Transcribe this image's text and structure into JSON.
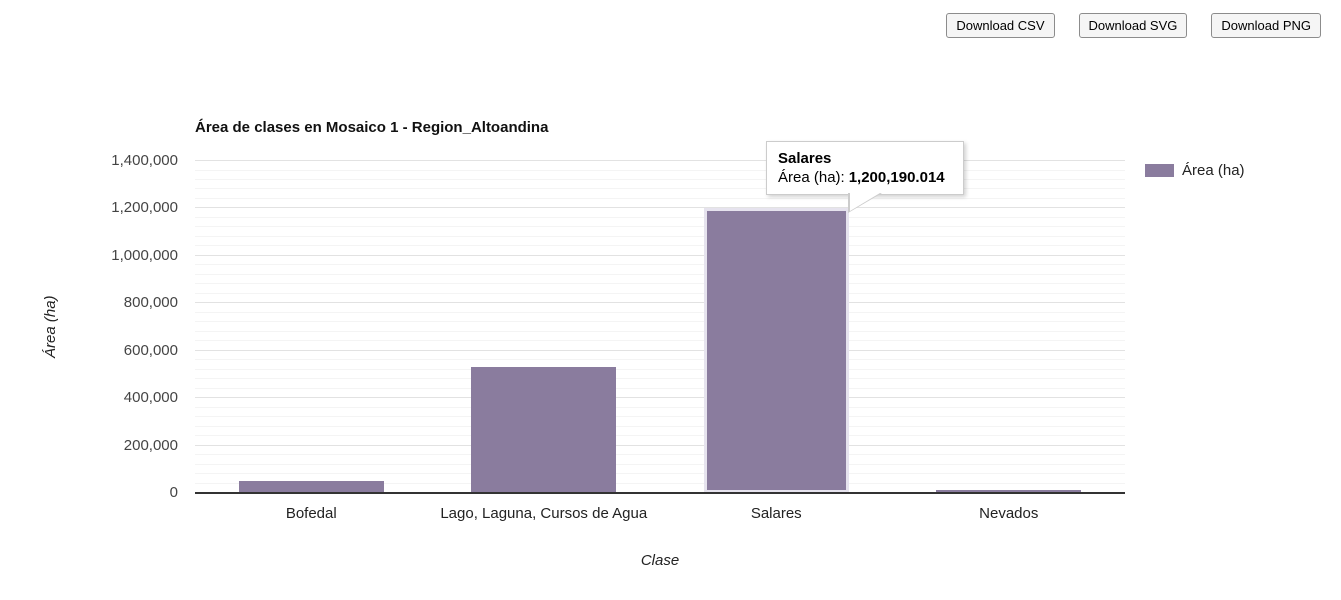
{
  "toolbar": {
    "buttons": [
      {
        "label": "Download CSV"
      },
      {
        "label": "Download SVG"
      },
      {
        "label": "Download PNG"
      }
    ]
  },
  "tooltip": {
    "title": "Salares",
    "label": "Área (ha):",
    "value": "1,200,190.014"
  },
  "chart_data": {
    "type": "bar",
    "title": "Área de clases en Mosaico 1 - Region_Altoandina",
    "categories": [
      "Bofedal",
      "Lago, Laguna, Cursos de Agua",
      "Salares",
      "Nevados"
    ],
    "series": [
      {
        "name": "Área (ha)",
        "values": [
          50000,
          530000,
          1200190.014,
          12000
        ]
      }
    ],
    "xlabel": "Clase",
    "ylabel": "Área (ha)",
    "ylim": [
      0,
      1400000
    ],
    "ytick_step": 200000,
    "minor_ticks_per_interval": 4,
    "bar_color": "#8a7c9e",
    "highlight_color": "#e6e3ee",
    "highlighted_index": 2,
    "grid": true,
    "legend_position": "right"
  }
}
